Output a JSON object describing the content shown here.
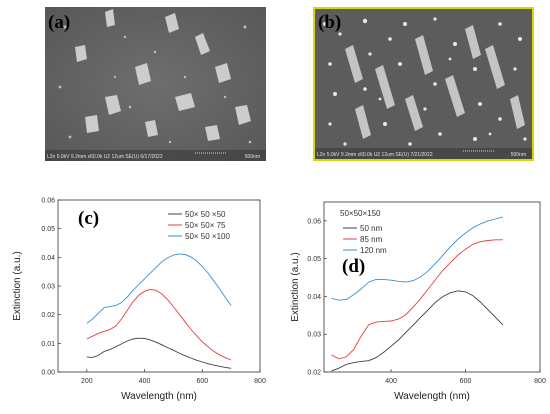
{
  "panels": {
    "a": {
      "label": "(a)",
      "footer": "L2n 5.0kV 9.2mm x60.0k U2 12um SE(U) 6/17/2022",
      "scale": "500nm"
    },
    "b": {
      "label": "(b)",
      "footer": "L2n 5.0kV 9.2mm x60.0k U2 12um SE(U) 7/21/2022",
      "scale": "500nm"
    }
  },
  "colors": {
    "black": "#404040",
    "red": "#e04040",
    "blue": "#3a8fd0",
    "sem_border_b": "#d8d800"
  },
  "chart_data": [
    {
      "type": "line",
      "panel_label": "(c)",
      "xlabel": "Wavelength  (nm)",
      "ylabel": "Extinction  (a.u.)",
      "xlim": [
        100,
        800
      ],
      "ylim": [
        0.0,
        0.06
      ],
      "xticks": [
        200,
        400,
        600,
        800
      ],
      "yticks": [
        0.0,
        0.01,
        0.02,
        0.03,
        0.04,
        0.05,
        0.06
      ],
      "ytick_labels": [
        "0.00",
        "0.01",
        "0.02",
        "0.03",
        "0.04",
        "0.05",
        "0.06"
      ],
      "legend_position": "top-right",
      "series": [
        {
          "name": "50× 50 ×50",
          "color": "black",
          "x": [
            200,
            220,
            240,
            260,
            280,
            300,
            320,
            340,
            360,
            380,
            400,
            420,
            440,
            460,
            480,
            500,
            520,
            540,
            560,
            580,
            600,
            620,
            640,
            660,
            680,
            700
          ],
          "y": [
            0.0052,
            0.0051,
            0.0058,
            0.0072,
            0.0078,
            0.0088,
            0.0098,
            0.0108,
            0.0115,
            0.0118,
            0.0117,
            0.0112,
            0.0104,
            0.0095,
            0.0085,
            0.0076,
            0.0066,
            0.0057,
            0.0049,
            0.0041,
            0.0035,
            0.0029,
            0.0024,
            0.002,
            0.0016,
            0.0013
          ]
        },
        {
          "name": "50× 50× 75",
          "color": "red",
          "x": [
            200,
            220,
            240,
            260,
            280,
            300,
            320,
            340,
            360,
            380,
            400,
            420,
            440,
            460,
            480,
            500,
            520,
            540,
            560,
            580,
            600,
            620,
            640,
            660,
            680,
            700
          ],
          "y": [
            0.0115,
            0.0125,
            0.0135,
            0.0142,
            0.0148,
            0.016,
            0.0185,
            0.0215,
            0.0245,
            0.0268,
            0.0282,
            0.0288,
            0.0285,
            0.0272,
            0.0252,
            0.0228,
            0.0202,
            0.0175,
            0.015,
            0.0127,
            0.0105,
            0.0088,
            0.0072,
            0.006,
            0.005,
            0.0042
          ]
        },
        {
          "name": "50× 50 ×100",
          "color": "blue",
          "x": [
            200,
            220,
            240,
            260,
            280,
            300,
            320,
            340,
            360,
            380,
            400,
            420,
            440,
            460,
            480,
            500,
            520,
            540,
            560,
            580,
            600,
            620,
            640,
            660,
            680,
            700
          ],
          "y": [
            0.017,
            0.0185,
            0.0205,
            0.0225,
            0.0228,
            0.0232,
            0.0242,
            0.0262,
            0.0285,
            0.0305,
            0.0325,
            0.0345,
            0.0365,
            0.0385,
            0.0398,
            0.0408,
            0.0412,
            0.041,
            0.0402,
            0.0388,
            0.0368,
            0.0345,
            0.0318,
            0.029,
            0.026,
            0.0232
          ]
        }
      ]
    },
    {
      "type": "line",
      "panel_label": "(d)",
      "title": "50×50×150",
      "xlabel": "Wavelength  (nm)",
      "ylabel": "Extinction  (a.u.)",
      "xlim": [
        220,
        800
      ],
      "ylim": [
        0.02,
        0.065
      ],
      "xticks": [
        400,
        600,
        800
      ],
      "yticks": [
        0.02,
        0.03,
        0.04,
        0.05,
        0.06
      ],
      "ytick_labels": [
        "0.02",
        "0.03",
        "0.04",
        "0.05",
        "0.06"
      ],
      "legend_position": "top-left",
      "series": [
        {
          "name": "50 nm",
          "color": "black",
          "x": [
            240,
            260,
            280,
            300,
            320,
            340,
            360,
            380,
            400,
            420,
            440,
            460,
            480,
            500,
            520,
            540,
            560,
            580,
            600,
            620,
            640,
            660,
            680,
            700
          ],
          "y": [
            0.0203,
            0.021,
            0.022,
            0.0225,
            0.0228,
            0.023,
            0.0238,
            0.0252,
            0.0268,
            0.0285,
            0.0305,
            0.0325,
            0.0345,
            0.0365,
            0.0385,
            0.04,
            0.041,
            0.0415,
            0.0412,
            0.0402,
            0.0385,
            0.0365,
            0.0345,
            0.0325
          ]
        },
        {
          "name": "85 nm",
          "color": "red",
          "x": [
            240,
            260,
            280,
            300,
            320,
            340,
            360,
            380,
            400,
            420,
            440,
            460,
            480,
            500,
            520,
            540,
            560,
            580,
            600,
            620,
            640,
            660,
            680,
            700
          ],
          "y": [
            0.0245,
            0.0235,
            0.024,
            0.026,
            0.0295,
            0.0325,
            0.0332,
            0.0334,
            0.0335,
            0.034,
            0.0352,
            0.0372,
            0.0395,
            0.042,
            0.0445,
            0.047,
            0.049,
            0.051,
            0.0525,
            0.0538,
            0.0545,
            0.0548,
            0.055,
            0.055
          ]
        },
        {
          "name": "120 nm",
          "color": "blue",
          "x": [
            240,
            260,
            280,
            300,
            320,
            340,
            360,
            380,
            400,
            420,
            440,
            460,
            480,
            500,
            520,
            540,
            560,
            580,
            600,
            620,
            640,
            660,
            680,
            700
          ],
          "y": [
            0.0395,
            0.039,
            0.0392,
            0.0405,
            0.042,
            0.0438,
            0.0445,
            0.0445,
            0.0443,
            0.044,
            0.0438,
            0.0442,
            0.0452,
            0.0468,
            0.0488,
            0.051,
            0.0532,
            0.0552,
            0.0568,
            0.0582,
            0.0592,
            0.06,
            0.0605,
            0.061
          ]
        }
      ]
    }
  ]
}
